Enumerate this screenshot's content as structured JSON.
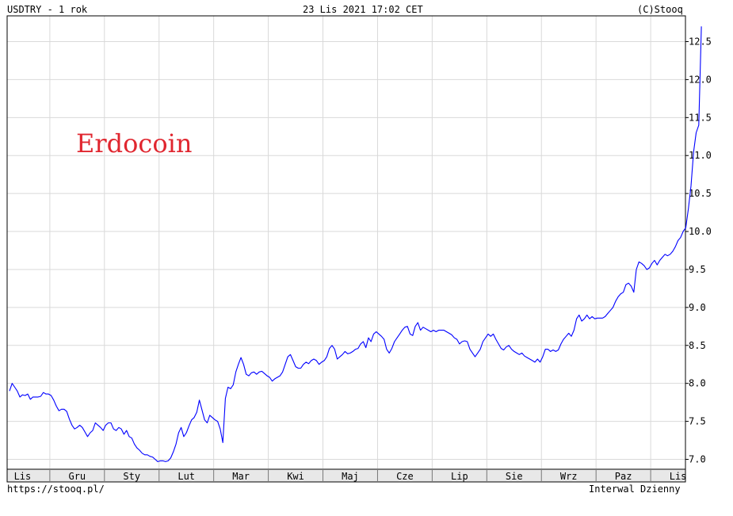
{
  "header": {
    "symbol": "USDTRY - 1 rok",
    "datetime": "23 Lis 2021 17:02 CET",
    "copyright": "(C)Stooq"
  },
  "footer": {
    "url": "https://stooq.pl/",
    "interval": "Interwal Dzienny"
  },
  "chart_data": {
    "type": "line",
    "title": "USDTRY - 1 rok",
    "annotation": "Erdocoin",
    "line_color": "#0000ff",
    "annotation_color": "#e0262f",
    "grid": true,
    "ylim": [
      6.85,
      12.85
    ],
    "yticks": [
      "7.0",
      "7.5",
      "8.0",
      "8.5",
      "9.0",
      "9.5",
      "10.0",
      "10.5",
      "11.0",
      "11.5",
      "12.0",
      "12.5"
    ],
    "xticks": [
      "Lis",
      "Gru",
      "Sty",
      "Lut",
      "Mar",
      "Kwi",
      "Maj",
      "Cze",
      "Lip",
      "Sie",
      "Wrz",
      "Paz",
      "Lis"
    ],
    "x_range": [
      0,
      255
    ],
    "x_tick_positions": [
      5,
      26,
      47,
      68,
      89,
      110,
      131,
      152,
      173,
      194,
      215,
      236,
      257
    ],
    "series": [
      {
        "values": [
          7.9,
          8.0,
          7.95,
          7.9,
          7.82,
          7.85,
          7.84,
          7.86,
          7.79,
          7.82,
          7.82,
          7.82,
          7.83,
          7.88,
          7.86,
          7.86,
          7.84,
          7.78,
          7.7,
          7.64,
          7.66,
          7.66,
          7.63,
          7.53,
          7.45,
          7.4,
          7.42,
          7.45,
          7.42,
          7.36,
          7.3,
          7.35,
          7.38,
          7.48,
          7.45,
          7.42,
          7.38,
          7.45,
          7.48,
          7.48,
          7.4,
          7.38,
          7.42,
          7.4,
          7.33,
          7.38,
          7.3,
          7.28,
          7.2,
          7.15,
          7.12,
          7.08,
          7.06,
          7.06,
          7.04,
          7.03,
          7.0,
          6.97,
          6.98,
          6.98,
          6.97,
          6.98,
          7.02,
          7.1,
          7.2,
          7.35,
          7.42,
          7.3,
          7.35,
          7.44,
          7.52,
          7.55,
          7.62,
          7.78,
          7.65,
          7.52,
          7.48,
          7.58,
          7.55,
          7.52,
          7.5,
          7.4,
          7.22,
          7.8,
          7.95,
          7.93,
          7.98,
          8.15,
          8.25,
          8.34,
          8.25,
          8.12,
          8.1,
          8.14,
          8.15,
          8.12,
          8.15,
          8.16,
          8.13,
          8.1,
          8.08,
          8.03,
          8.06,
          8.08,
          8.1,
          8.15,
          8.25,
          8.35,
          8.38,
          8.3,
          8.22,
          8.2,
          8.2,
          8.25,
          8.28,
          8.26,
          8.3,
          8.32,
          8.3,
          8.25,
          8.28,
          8.3,
          8.35,
          8.46,
          8.5,
          8.45,
          8.32,
          8.35,
          8.38,
          8.42,
          8.39,
          8.4,
          8.42,
          8.45,
          8.46,
          8.52,
          8.55,
          8.47,
          8.6,
          8.55,
          8.65,
          8.68,
          8.65,
          8.62,
          8.58,
          8.45,
          8.4,
          8.46,
          8.55,
          8.6,
          8.65,
          8.7,
          8.74,
          8.75,
          8.65,
          8.63,
          8.75,
          8.8,
          8.7,
          8.74,
          8.72,
          8.7,
          8.68,
          8.7,
          8.68,
          8.7,
          8.7,
          8.7,
          8.68,
          8.66,
          8.64,
          8.6,
          8.58,
          8.52,
          8.55,
          8.56,
          8.55,
          8.45,
          8.4,
          8.35,
          8.4,
          8.45,
          8.55,
          8.6,
          8.65,
          8.62,
          8.65,
          8.58,
          8.52,
          8.46,
          8.44,
          8.48,
          8.5,
          8.45,
          8.42,
          8.4,
          8.38,
          8.4,
          8.36,
          8.34,
          8.32,
          8.3,
          8.28,
          8.32,
          8.28,
          8.35,
          8.45,
          8.45,
          8.42,
          8.44,
          8.42,
          8.44,
          8.52,
          8.58,
          8.62,
          8.66,
          8.62,
          8.7,
          8.85,
          8.9,
          8.82,
          8.85,
          8.9,
          8.85,
          8.88,
          8.85,
          8.86,
          8.86,
          8.86,
          8.88,
          8.92,
          8.96,
          9.0,
          9.08,
          9.14,
          9.18,
          9.2,
          9.3,
          9.32,
          9.28,
          9.2,
          9.5,
          9.6,
          9.58,
          9.55,
          9.5,
          9.52,
          9.58,
          9.62,
          9.56,
          9.62,
          9.66,
          9.7,
          9.68,
          9.7,
          9.74,
          9.8,
          9.88,
          9.92,
          10.0,
          10.05,
          10.3,
          10.6,
          11.05,
          11.3,
          11.4,
          12.7
        ]
      }
    ]
  }
}
